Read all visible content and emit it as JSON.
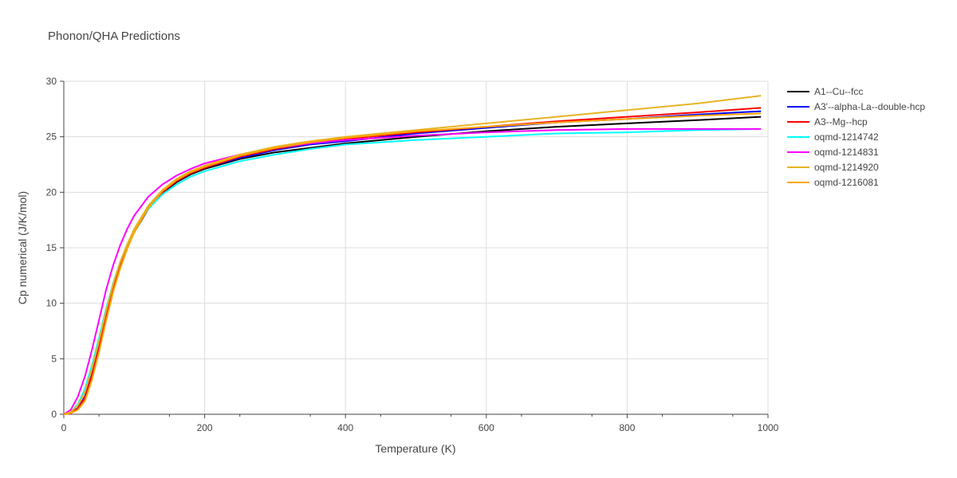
{
  "chart_data": {
    "type": "line",
    "title": "Phonon/QHA Predictions",
    "xlabel": "Temperature (K)",
    "ylabel": "Cp numerical (J/K/mol)",
    "xlim": [
      0,
      1000
    ],
    "ylim": [
      0,
      30
    ],
    "xticks": [
      0,
      200,
      400,
      600,
      800,
      1000
    ],
    "yticks": [
      0,
      5,
      10,
      15,
      20,
      25,
      30
    ],
    "grid": true,
    "legend_position": "right",
    "x": [
      0,
      10,
      20,
      30,
      40,
      50,
      60,
      70,
      80,
      90,
      100,
      120,
      140,
      160,
      180,
      200,
      250,
      300,
      350,
      400,
      500,
      600,
      700,
      800,
      900,
      990
    ],
    "series": [
      {
        "name": "A1--Cu--fcc",
        "color": "#000000",
        "values": [
          0,
          0.1,
          0.5,
          1.5,
          3.5,
          6.0,
          8.8,
          11.3,
          13.3,
          15.0,
          16.4,
          18.5,
          19.9,
          20.9,
          21.6,
          22.1,
          23.0,
          23.6,
          24.0,
          24.4,
          25.0,
          25.5,
          25.9,
          26.2,
          26.5,
          26.8
        ]
      },
      {
        "name": "A3'--alpha-La--double-hcp",
        "color": "#0000ff",
        "values": [
          0,
          0.12,
          0.55,
          1.6,
          3.6,
          6.1,
          8.9,
          11.4,
          13.4,
          15.1,
          16.5,
          18.6,
          20.0,
          21.0,
          21.7,
          22.2,
          23.1,
          23.8,
          24.3,
          24.6,
          25.3,
          25.8,
          26.3,
          26.6,
          27.0,
          27.3
        ]
      },
      {
        "name": "A3--Mg--hcp",
        "color": "#ff0000",
        "values": [
          0,
          0.1,
          0.5,
          1.5,
          3.5,
          6.0,
          8.8,
          11.3,
          13.4,
          15.1,
          16.5,
          18.6,
          20.0,
          21.0,
          21.7,
          22.2,
          23.2,
          23.9,
          24.4,
          24.8,
          25.4,
          25.9,
          26.4,
          26.8,
          27.2,
          27.6
        ]
      },
      {
        "name": "oqmd-1214742",
        "color": "#00ffff",
        "values": [
          0,
          0.2,
          0.9,
          2.3,
          4.4,
          6.9,
          9.5,
          11.8,
          13.7,
          15.3,
          16.6,
          18.5,
          19.8,
          20.7,
          21.4,
          21.9,
          22.8,
          23.4,
          23.9,
          24.3,
          24.7,
          25.0,
          25.3,
          25.4,
          25.6,
          25.7
        ]
      },
      {
        "name": "oqmd-1214831",
        "color": "#ff00ff",
        "values": [
          0,
          0.4,
          1.6,
          3.4,
          5.8,
          8.5,
          11.2,
          13.4,
          15.2,
          16.7,
          17.9,
          19.6,
          20.7,
          21.5,
          22.1,
          22.6,
          23.4,
          24.0,
          24.4,
          24.7,
          25.1,
          25.4,
          25.6,
          25.7,
          25.7,
          25.7
        ]
      },
      {
        "name": "oqmd-1214920",
        "color": "#e6b422",
        "values": [
          0,
          0.2,
          0.8,
          2.0,
          4.1,
          6.6,
          9.3,
          11.7,
          13.7,
          15.3,
          16.7,
          18.8,
          20.2,
          21.2,
          21.9,
          22.4,
          23.4,
          24.1,
          24.6,
          25.0,
          25.6,
          26.2,
          26.8,
          27.4,
          28.0,
          28.7
        ]
      },
      {
        "name": "oqmd-1216081",
        "color": "#ffa500",
        "values": [
          0,
          0.1,
          0.4,
          1.2,
          3.1,
          5.6,
          8.4,
          11.0,
          13.1,
          14.9,
          16.4,
          18.6,
          20.1,
          21.1,
          21.8,
          22.3,
          23.3,
          24.0,
          24.5,
          24.9,
          25.5,
          25.9,
          26.3,
          26.6,
          26.9,
          27.1
        ]
      }
    ]
  }
}
